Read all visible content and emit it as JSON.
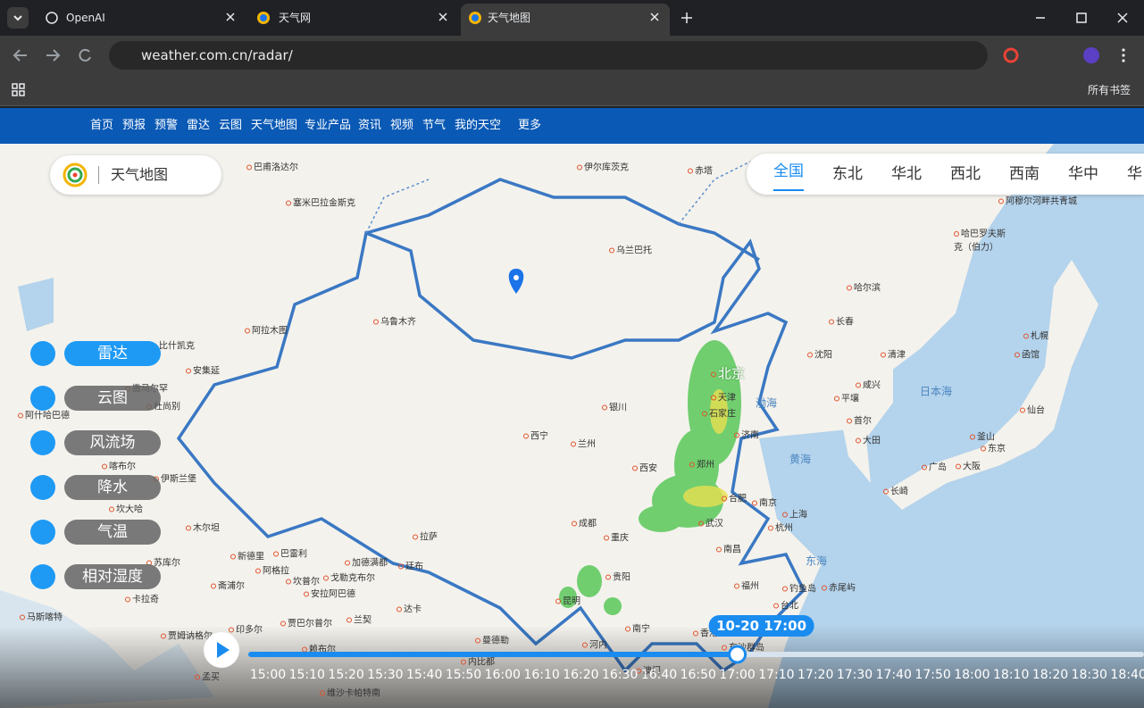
{
  "tabs": [
    "OpenAI",
    "天气网",
    "天气地图"
  ],
  "address": "weather.com.cn/radar/",
  "bookmarks": "所有书签",
  "nav": [
    "首页",
    "预报",
    "预警",
    "雷达",
    "云图",
    "天气地图",
    "专业产品",
    "资讯",
    "视频",
    "节气",
    "我的天空",
    "更多"
  ],
  "brand": "天气地图",
  "regions": [
    "全国",
    "东北",
    "华北",
    "西北",
    "西南",
    "华中",
    "华"
  ],
  "layers": [
    "雷达",
    "云图",
    "风流场",
    "降水",
    "气温",
    "相对湿度"
  ],
  "map_labels": {
    "cities": [
      "巴甫洛达尔",
      "伊尔库茨克",
      "赤塔",
      "塞米巴拉金斯克",
      "阿穆尔河畔共青城",
      "乌兰巴托",
      "哈巴罗夫斯克（伯力）",
      "哈尔滨",
      "阿拉木图",
      "乌鲁木齐",
      "长春",
      "札幌",
      "沈阳",
      "清津",
      "函馆",
      "北京",
      "咸兴",
      "天津",
      "平壤",
      "石家庄",
      "仙台",
      "银川",
      "首尔",
      "西宁",
      "兰州",
      "济南",
      "大田",
      "釜山",
      "东京",
      "西安",
      "郑州",
      "广岛",
      "大阪",
      "长崎",
      "合肥",
      "南京",
      "成都",
      "上海",
      "武汉",
      "杭州",
      "重庆",
      "拉萨",
      "南昌",
      "贵阳",
      "福州",
      "钓鱼岛",
      "赤尾屿",
      "昆明",
      "台北",
      "南宁",
      "香港",
      "澳门",
      "曼德勒",
      "河内",
      "东沙群岛",
      "内比都",
      "达卡",
      "加德满都",
      "廷布",
      "戈勒克布尔",
      "坎普尔",
      "巴雷利",
      "新德里",
      "阿格拉",
      "安拉阿巴德",
      "斋浦尔",
      "印多尔",
      "贾巴尔普尔",
      "兰契",
      "贾姆讷格尔",
      "孟买",
      "赖布尔",
      "维沙卡帕特南",
      "马斯喀特",
      "卡拉奇",
      "苏库尔",
      "木尔坦",
      "坎大哈",
      "喀布尔",
      "伊斯兰堡",
      "安集延",
      "撒马尔罕",
      "杜尚别",
      "阿什哈巴德",
      "比什凯克"
    ],
    "seas": [
      "渤海",
      "日本海",
      "黄海",
      "东海"
    ]
  },
  "timeline": {
    "current": "10-20 17:00",
    "times": [
      "15:00",
      "15:10",
      "15:20",
      "15:30",
      "15:40",
      "15:50",
      "16:00",
      "16:10",
      "16:20",
      "16:30",
      "16:40",
      "16:50",
      "17:00",
      "17:10",
      "17:20",
      "17:30",
      "17:40",
      "17:50",
      "18:00",
      "18:10",
      "18:20",
      "18:30",
      "18:40"
    ],
    "current_index": 12
  }
}
